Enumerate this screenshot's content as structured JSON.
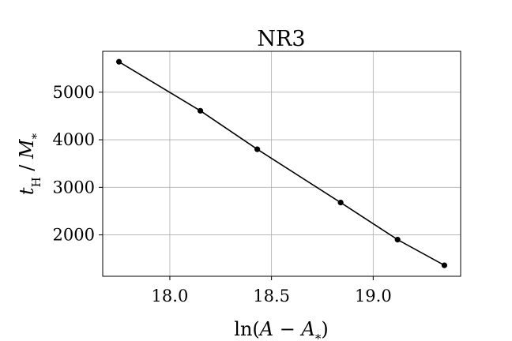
{
  "chart_data": {
    "type": "line",
    "title": "NR3",
    "xlabel": "ln(A − A*)",
    "ylabel": "tH / M*",
    "xlim": [
      17.67,
      19.43
    ],
    "ylim": [
      1130,
      5860
    ],
    "xticks": [
      18.0,
      18.5,
      19.0
    ],
    "yticks": [
      2000,
      3000,
      4000,
      5000
    ],
    "xtick_labels": [
      "18.0",
      "18.5",
      "19.0"
    ],
    "ytick_labels": [
      "2000",
      "3000",
      "4000",
      "5000"
    ],
    "grid": true,
    "series": [
      {
        "x": [
          17.75,
          18.15,
          18.43,
          18.84,
          19.12,
          19.35
        ],
        "y": [
          5640,
          4610,
          3800,
          2680,
          1900,
          1360
        ],
        "marker": "circle",
        "color": "#000000"
      }
    ]
  }
}
